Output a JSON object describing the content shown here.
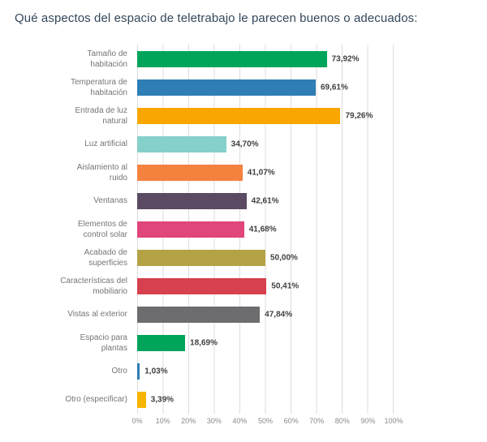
{
  "title": "Qué aspectos del espacio de teletrabajo le parecen buenos o adecuados:",
  "chart_data": {
    "type": "bar",
    "orientation": "horizontal",
    "title": "Qué aspectos del espacio de teletrabajo le parecen buenos o adecuados:",
    "categories": [
      "Tamaño de habitación",
      "Temperatura de habitación",
      "Entrada de luz natural",
      "Luz artificial",
      "Aislamiento al ruido",
      "Ventanas",
      "Elementos de control solar",
      "Acabado de superficies",
      "Características del mobiliario",
      "Vistas al exterior",
      "Espacio para plantas",
      "Otro",
      "Otro (especificar)"
    ],
    "values": [
      73.92,
      69.61,
      79.26,
      34.7,
      41.07,
      42.61,
      41.68,
      50.0,
      50.41,
      47.84,
      18.69,
      1.03,
      3.39
    ],
    "value_labels": [
      "73,92%",
      "69,61%",
      "79,26%",
      "34,70%",
      "41,07%",
      "42,61%",
      "41,68%",
      "50,00%",
      "50,41%",
      "47,84%",
      "18,69%",
      "1,03%",
      "3,39%"
    ],
    "bar_colors": [
      "#00a45a",
      "#2f7eb5",
      "#f9a602",
      "#85d0cb",
      "#f5813f",
      "#5a4a63",
      "#e0457b",
      "#b4a345",
      "#d6404f",
      "#6d6d70",
      "#00a45a",
      "#2f7eb5",
      "#f7b500"
    ],
    "xlabel": "",
    "ylabel": "",
    "xlim": [
      0,
      100
    ],
    "x_ticks": [
      "0%",
      "10%",
      "20%",
      "30%",
      "40%",
      "50%",
      "60%",
      "70%",
      "80%",
      "90%",
      "100%"
    ],
    "grid": "vertical",
    "legend": "none"
  },
  "colors": {
    "title": "#33475b",
    "category_label": "#757575",
    "value_label": "#404040",
    "gridline": "#dcdcdc"
  }
}
